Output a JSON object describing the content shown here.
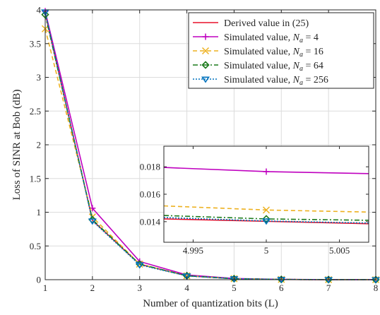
{
  "chart_data": [
    {
      "type": "line",
      "xlabel": "Number of quantization bits (L)",
      "ylabel": "Loss of SINR at Bob (dB)",
      "xlim": [
        1,
        8
      ],
      "ylim": [
        0,
        4
      ],
      "xticks": [
        1,
        2,
        3,
        4,
        5,
        6,
        7,
        8
      ],
      "yticks": [
        0,
        0.5,
        1,
        1.5,
        2,
        2.5,
        3,
        3.5,
        4
      ],
      "xtick_labels": [
        "1",
        "2",
        "3",
        "4",
        "5",
        "6",
        "7",
        "8"
      ],
      "ytick_labels": [
        "0",
        "0.5",
        "1",
        "1.5",
        "2",
        "2.5",
        "3",
        "3.5",
        "4"
      ],
      "grid": true,
      "legend_position": "top-right",
      "x": [
        1,
        2,
        3,
        4,
        5,
        6,
        7,
        8
      ],
      "series": [
        {
          "name": "Derived value in (25)",
          "color": "#e8102a",
          "style": "solid",
          "marker": "none",
          "values": [
            3.95,
            0.88,
            0.23,
            0.058,
            0.014,
            0.0036,
            0.0009,
            0.0002
          ]
        },
        {
          "name": "Simulated value, Na = 4",
          "color": "#bf00bf",
          "style": "solid",
          "marker": "plus",
          "values": [
            3.98,
            1.06,
            0.27,
            0.07,
            0.0176,
            0.0044,
            0.0011,
            0.0003
          ]
        },
        {
          "name": "Simulated value, Na = 16",
          "color": "#edb120",
          "style": "dashed",
          "marker": "x",
          "values": [
            3.72,
            0.93,
            0.23,
            0.058,
            0.0148,
            0.0037,
            0.0009,
            0.0002
          ]
        },
        {
          "name": "Simulated value, Na = 64",
          "color": "#1a7a1a",
          "style": "dashdot",
          "marker": "diamond",
          "values": [
            3.93,
            0.89,
            0.23,
            0.058,
            0.0142,
            0.0036,
            0.0009,
            0.0002
          ]
        },
        {
          "name": "Simulated value, Na = 256",
          "color": "#0072bd",
          "style": "dotted",
          "marker": "triangle-down",
          "values": [
            3.97,
            0.87,
            0.22,
            0.056,
            0.0141,
            0.0035,
            0.0009,
            0.0002
          ]
        }
      ]
    },
    {
      "type": "line",
      "xlim": [
        4.993,
        5.007
      ],
      "ylim": [
        0.0125,
        0.0195
      ],
      "xticks": [
        4.995,
        5,
        5.005
      ],
      "yticks": [
        0.014,
        0.016,
        0.018
      ],
      "xtick_labels": [
        "4.995",
        "5",
        "5.005"
      ],
      "ytick_labels": [
        "0.014",
        "0.016",
        "0.018"
      ],
      "grid": false,
      "series": [
        {
          "name": "Derived value in (25)",
          "x": [
            4.993,
            5.007
          ],
          "values": [
            0.0142,
            0.01385
          ]
        },
        {
          "name": "Simulated value, Na = 4",
          "x": [
            4.993,
            5,
            5.007
          ],
          "values": [
            0.01795,
            0.01765,
            0.0175
          ]
        },
        {
          "name": "Simulated value, Na = 16",
          "x": [
            4.993,
            5,
            5.007
          ],
          "values": [
            0.01515,
            0.01485,
            0.0147
          ]
        },
        {
          "name": "Simulated value, Na = 64",
          "x": [
            4.993,
            5,
            5.007
          ],
          "values": [
            0.01445,
            0.0142,
            0.0141
          ]
        },
        {
          "name": "Simulated value, Na = 256",
          "x": [
            4.993,
            5,
            5.007
          ],
          "values": [
            0.0143,
            0.01405,
            0.0139
          ]
        }
      ]
    }
  ]
}
